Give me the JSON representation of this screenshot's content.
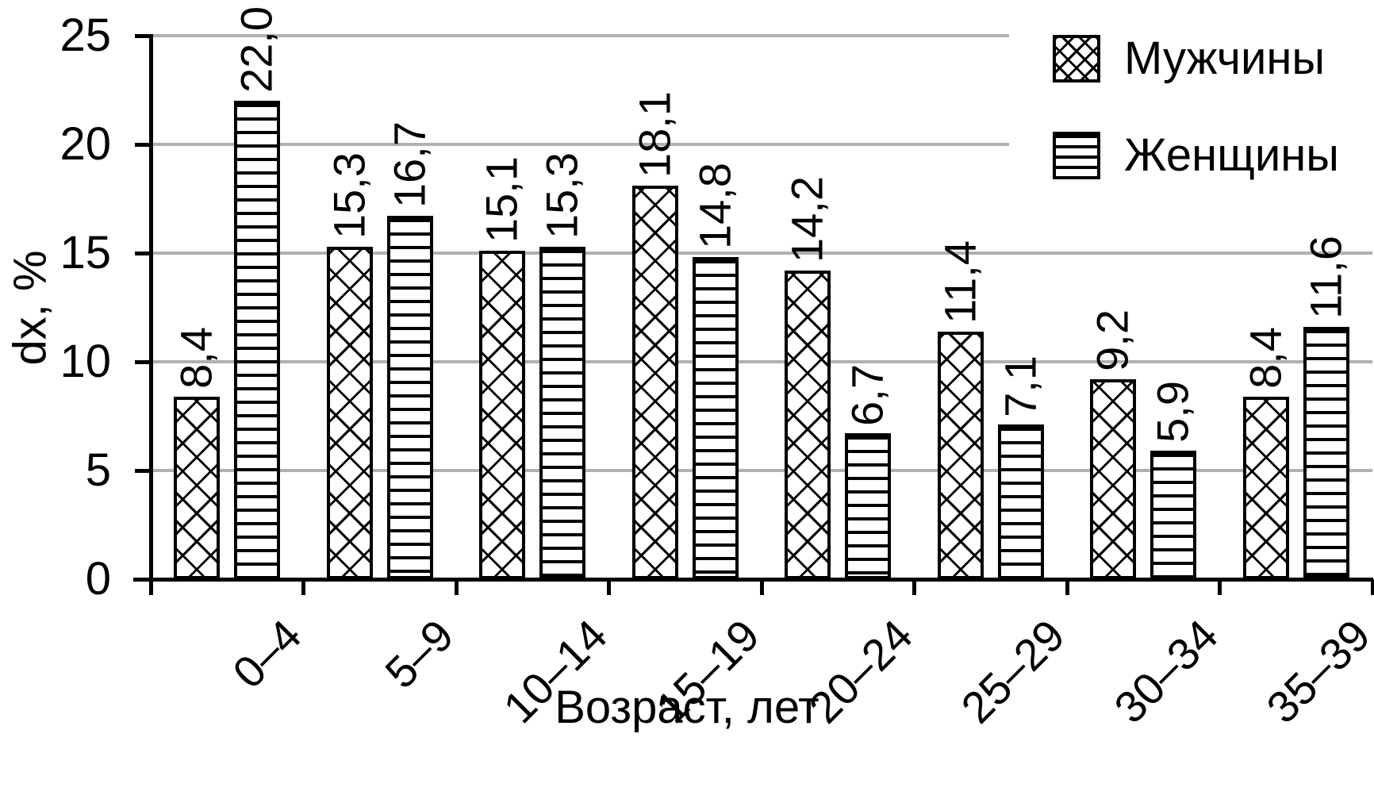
{
  "chart_data": {
    "type": "bar",
    "title": "",
    "xlabel": "Возраст, лет",
    "ylabel": "dx, %",
    "categories": [
      "0–4",
      "5–9",
      "10–14",
      "15–19",
      "20–24",
      "25–29",
      "30–34",
      "35–39"
    ],
    "series": [
      {
        "name": "Мужчины",
        "pattern": "crosshatch",
        "values": [
          8.4,
          15.3,
          15.1,
          18.1,
          14.2,
          11.4,
          9.2,
          8.4
        ],
        "labels": [
          "8,4",
          "15,3",
          "15,1",
          "18,1",
          "14,2",
          "11,4",
          "9,2",
          "8,4"
        ]
      },
      {
        "name": "Женщины",
        "pattern": "hlines",
        "values": [
          22.0,
          16.7,
          15.3,
          14.8,
          6.7,
          7.1,
          5.9,
          11.6
        ],
        "labels": [
          "22,0",
          "16,7",
          "15,3",
          "14,8",
          "6,7",
          "7,1",
          "5,9",
          "11,6"
        ]
      }
    ],
    "ylim": [
      0,
      25
    ],
    "yticks": [
      0,
      5,
      10,
      15,
      20,
      25
    ],
    "grid": true,
    "legend_position": "top-right",
    "decimal_separator": ","
  },
  "colors": {
    "foreground": "#000000",
    "background": "#ffffff",
    "gridline": "#b0b0b0",
    "bar_fill": "#ffffff"
  }
}
